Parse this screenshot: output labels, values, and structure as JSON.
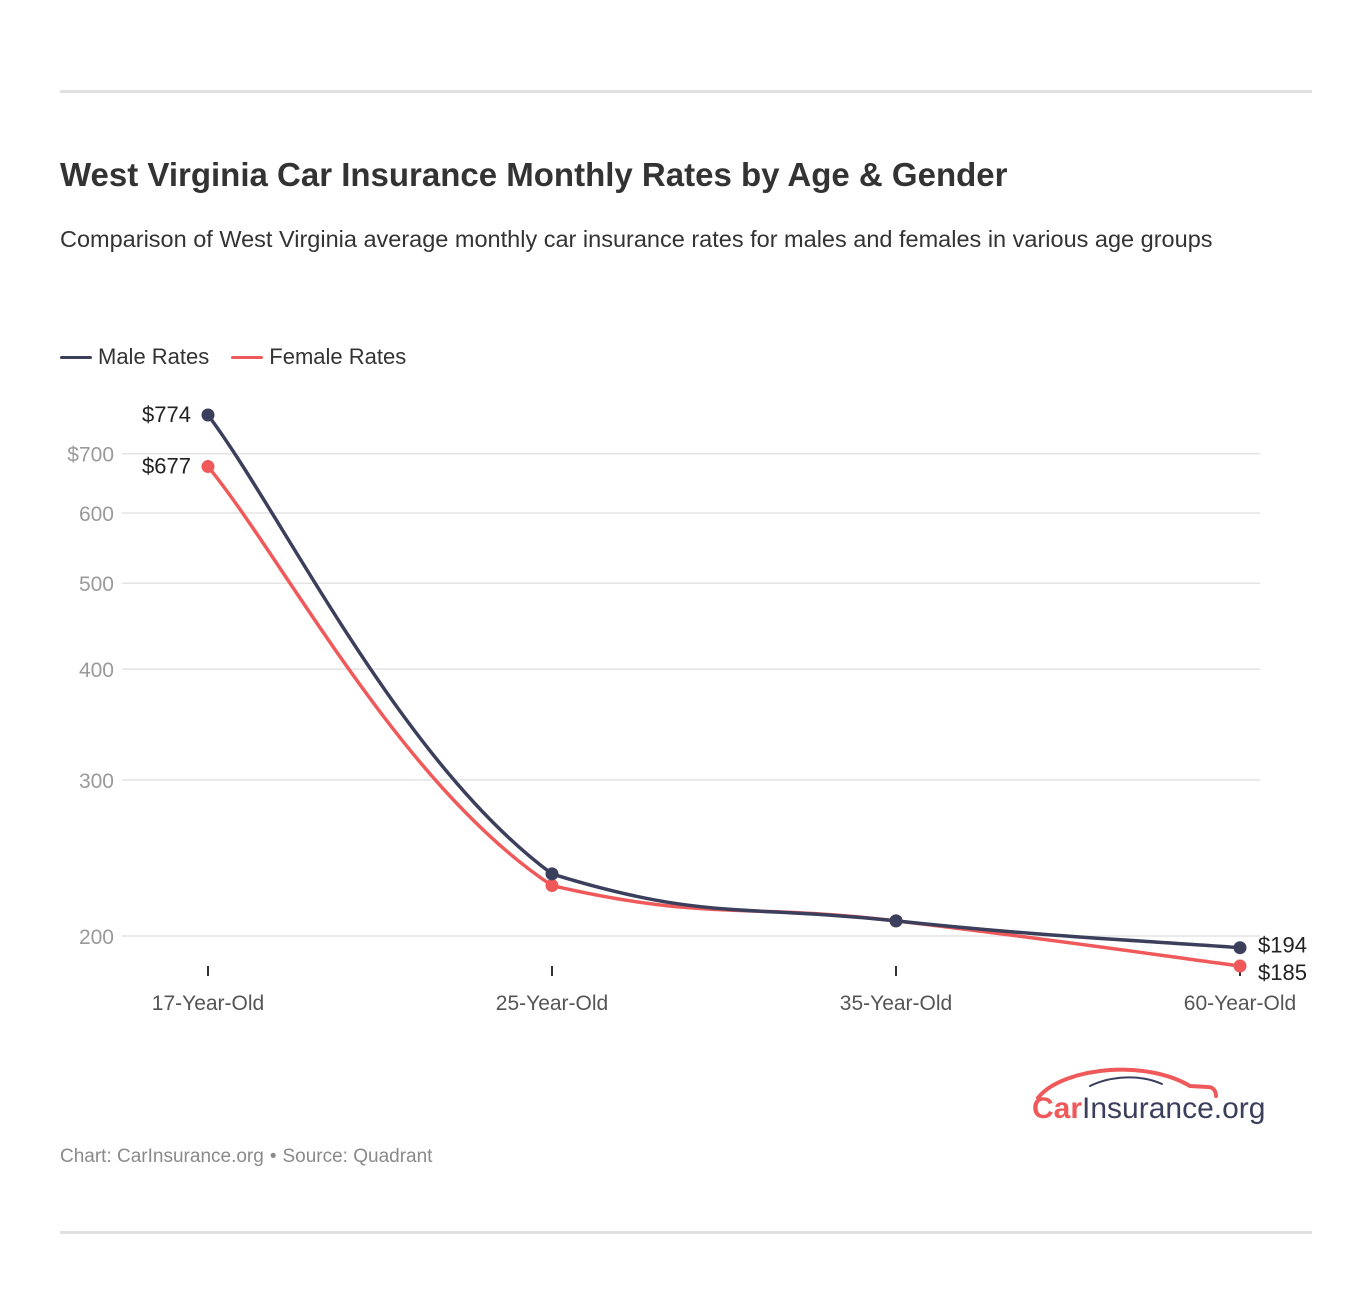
{
  "title": "West Virginia Car Insurance Monthly Rates by Age & Gender",
  "subtitle": "Comparison of West Virginia average monthly car insurance rates for males and females in various age groups",
  "legend": [
    {
      "label": "Male Rates",
      "color": "#3b3f5c"
    },
    {
      "label": "Female Rates",
      "color": "#f0595a"
    }
  ],
  "footer": {
    "chart_credit": "Chart: CarInsurance.org",
    "separator": "•",
    "source": "Source: Quadrant"
  },
  "logo": {
    "text_accent": "Car",
    "text_rest": "Insurance.org",
    "accent_color": "#f0595a",
    "text_color": "#3b3f5c"
  },
  "chart_data": {
    "type": "line",
    "title": "West Virginia Car Insurance Monthly Rates by Age & Gender",
    "categories": [
      "17-Year-Old",
      "25-Year-Old",
      "35-Year-Old",
      "60-Year-Old"
    ],
    "series": [
      {
        "name": "Male Rates",
        "color": "#3b3f5c",
        "values": [
          774,
          235,
          208,
          194
        ]
      },
      {
        "name": "Female Rates",
        "color": "#f0595a",
        "values": [
          677,
          228,
          208,
          185
        ]
      }
    ],
    "y_scale": "log",
    "ylim": [
      185,
      774
    ],
    "y_ticks": [
      {
        "value": 200,
        "label": "200"
      },
      {
        "value": 300,
        "label": "300"
      },
      {
        "value": 400,
        "label": "400"
      },
      {
        "value": 500,
        "label": "500"
      },
      {
        "value": 600,
        "label": "600"
      },
      {
        "value": 700,
        "label": "$700"
      }
    ],
    "data_labels": [
      {
        "series": 0,
        "index": 0,
        "text": "$774"
      },
      {
        "series": 1,
        "index": 0,
        "text": "$677"
      },
      {
        "series": 0,
        "index": 3,
        "text": "$194"
      },
      {
        "series": 1,
        "index": 3,
        "text": "$185"
      }
    ],
    "grid": true,
    "legend_position": "top-left",
    "xlabel": "",
    "ylabel": ""
  }
}
